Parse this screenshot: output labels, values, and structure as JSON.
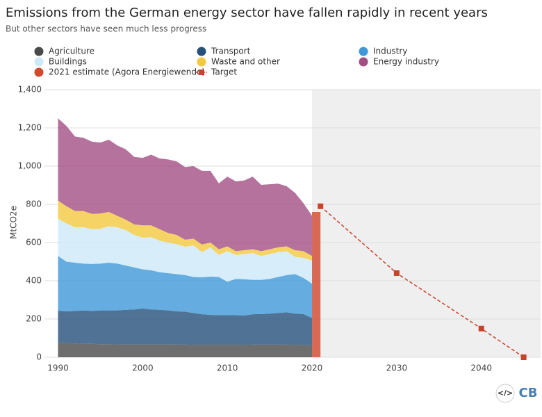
{
  "chart_data": {
    "type": "stacked_area",
    "title": "Emissions from the German energy sector have fallen rapidly in recent years",
    "subtitle": "But other sectors have seen much less progress",
    "y_label": "MtCO2e",
    "x": [
      1990,
      1991,
      1992,
      1993,
      1994,
      1995,
      1996,
      1997,
      1998,
      1999,
      2000,
      2001,
      2002,
      2003,
      2004,
      2005,
      2006,
      2007,
      2008,
      2009,
      2010,
      2011,
      2012,
      2013,
      2014,
      2015,
      2016,
      2017,
      2018,
      2019,
      2020
    ],
    "series": [
      {
        "name": "Agriculture",
        "color": "#4a4a4a",
        "values": [
          78,
          74,
          72,
          70,
          70,
          68,
          68,
          67,
          67,
          67,
          67,
          67,
          67,
          67,
          66,
          66,
          65,
          65,
          65,
          65,
          65,
          65,
          65,
          66,
          66,
          66,
          66,
          66,
          65,
          64,
          62
        ]
      },
      {
        "name": "Transport",
        "color": "#24507a",
        "values": [
          165,
          166,
          170,
          175,
          172,
          177,
          177,
          178,
          181,
          183,
          188,
          183,
          181,
          178,
          174,
          172,
          167,
          160,
          157,
          155,
          155,
          155,
          153,
          159,
          160,
          162,
          166,
          169,
          163,
          162,
          143
        ]
      },
      {
        "name": "Industry",
        "color": "#3f98d8",
        "values": [
          287,
          260,
          253,
          245,
          246,
          245,
          250,
          245,
          232,
          220,
          205,
          205,
          197,
          195,
          195,
          192,
          188,
          193,
          200,
          200,
          175,
          190,
          190,
          180,
          179,
          182,
          188,
          195,
          207,
          189,
          180
        ]
      },
      {
        "name": "Buildings",
        "color": "#cdeaf9",
        "values": [
          195,
          200,
          185,
          190,
          182,
          182,
          190,
          190,
          185,
          170,
          165,
          173,
          165,
          160,
          157,
          148,
          165,
          132,
          153,
          115,
          160,
          125,
          132,
          140,
          125,
          130,
          130,
          125,
          90,
          105,
          120
        ]
      },
      {
        "name": "Waste and other",
        "color": "#f3c93e",
        "values": [
          95,
          90,
          85,
          85,
          80,
          80,
          75,
          60,
          55,
          55,
          65,
          62,
          60,
          50,
          48,
          37,
          35,
          40,
          25,
          30,
          25,
          20,
          20,
          20,
          25,
          25,
          25,
          25,
          35,
          35,
          25
        ]
      },
      {
        "name": "Energy industry",
        "color": "#a24f83",
        "values": [
          430,
          420,
          390,
          383,
          378,
          371,
          378,
          368,
          368,
          353,
          353,
          370,
          370,
          385,
          385,
          380,
          380,
          385,
          375,
          345,
          365,
          365,
          365,
          380,
          347,
          340,
          333,
          315,
          300,
          250,
          210
        ]
      }
    ],
    "estimate": {
      "name": "2021 estimate (Agora Energiewende)",
      "color": "#d2492e",
      "x": 2021,
      "value": 760
    },
    "target": {
      "name": "Target",
      "color": "#c9422b",
      "x": [
        2021,
        2030,
        2040,
        2045
      ],
      "values": [
        790,
        440,
        150,
        0
      ]
    },
    "xlim": [
      1988.4,
      2047
    ],
    "xticks": [
      1990,
      2000,
      2010,
      2020,
      2030,
      2040
    ],
    "ylim": [
      0,
      1400
    ],
    "yticks": [
      0,
      200,
      400,
      600,
      800,
      {
        "value": 1000,
        "label": "1,000"
      },
      {
        "value": 1200,
        "label": "1,200"
      },
      {
        "value": 1400,
        "label": "1,400"
      }
    ],
    "grid": true
  },
  "branding": {
    "embed": "</>",
    "logo": "CB"
  }
}
